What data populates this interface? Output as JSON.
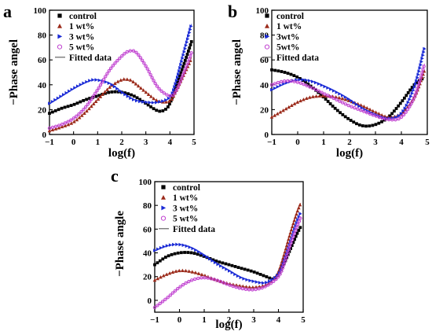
{
  "chart_data": [
    {
      "panel": "a",
      "type": "scatter",
      "xlabel": "log(f)",
      "ylabel": "−Phase angel",
      "xlim": [
        -1,
        5
      ],
      "ylim": [
        0,
        100
      ],
      "xticks": [
        -1,
        0,
        1,
        2,
        3,
        4,
        5
      ],
      "yticks": [
        0,
        20,
        40,
        60,
        80,
        100
      ],
      "legend_position": "top-left",
      "series": [
        {
          "name": "control",
          "marker": "square",
          "color": "#000000",
          "x": [
            -1,
            -0.5,
            0,
            0.5,
            1,
            1.5,
            2,
            2.5,
            3,
            3.5,
            3.8,
            4,
            4.25,
            4.5,
            4.75,
            4.9
          ],
          "y": [
            17,
            21,
            24,
            28,
            31,
            34,
            34,
            31,
            25,
            19,
            20,
            25,
            38,
            52,
            66,
            75
          ]
        },
        {
          "name": "1 wt%",
          "marker": "triangle-up",
          "color": "#9b2a1a",
          "x": [
            -1,
            -0.5,
            0,
            0.5,
            1,
            1.5,
            2,
            2.3,
            2.5,
            3,
            3.5,
            4,
            4.25,
            4.5,
            4.75,
            4.9
          ],
          "y": [
            3,
            6,
            10,
            18,
            28,
            38,
            44,
            44,
            42,
            34,
            27,
            27,
            35,
            45,
            55,
            62
          ]
        },
        {
          "name": "3 wt%",
          "marker": "triangle-right",
          "color": "#1a2ad6",
          "x": [
            -1,
            -0.5,
            0,
            0.5,
            0.9,
            1.5,
            2,
            2.5,
            3,
            3.5,
            4,
            4.25,
            4.5,
            4.75,
            4.9
          ],
          "y": [
            25,
            31,
            37,
            42,
            44,
            41,
            34,
            28,
            26,
            26,
            30,
            42,
            60,
            78,
            89
          ]
        },
        {
          "name": "5 wt%",
          "marker": "circle",
          "color": "#c040d0",
          "x": [
            -1,
            -0.5,
            0,
            0.5,
            1,
            1.5,
            2,
            2.3,
            2.6,
            3,
            3.5,
            4,
            4.25,
            4.5,
            4.75,
            4.9
          ],
          "y": [
            5,
            8,
            13,
            22,
            36,
            52,
            63,
            67,
            66,
            55,
            38,
            31,
            35,
            46,
            58,
            66
          ]
        }
      ],
      "fitted_label": "Fitted data"
    },
    {
      "panel": "b",
      "type": "scatter",
      "xlabel": "log(f)",
      "ylabel": "−Phase angel",
      "xlim": [
        -1,
        5
      ],
      "ylim": [
        0,
        100
      ],
      "xticks": [
        -1,
        0,
        1,
        2,
        3,
        4,
        5
      ],
      "yticks": [
        0,
        20,
        40,
        60,
        80,
        100
      ],
      "legend_position": "top-right",
      "series": [
        {
          "name": "control",
          "marker": "square",
          "color": "#000000",
          "x": [
            -1,
            -0.5,
            0,
            0.5,
            1,
            1.5,
            2,
            2.5,
            3,
            3.5,
            4,
            4.5,
            4.9
          ],
          "y": [
            52,
            50,
            46,
            39,
            30,
            20,
            12,
            7,
            8,
            14,
            26,
            40,
            46
          ]
        },
        {
          "name": "1 wt%",
          "marker": "triangle-up",
          "color": "#9b2a1a",
          "x": [
            -1,
            -0.5,
            0,
            0.5,
            1,
            1.5,
            2,
            2.5,
            3,
            3.5,
            4,
            4.5,
            4.9
          ],
          "y": [
            14,
            20,
            26,
            30,
            31,
            30,
            27,
            23,
            18,
            14,
            17,
            30,
            52
          ]
        },
        {
          "name": "3wt%",
          "marker": "triangle-right",
          "color": "#1a2ad6",
          "x": [
            -1,
            -0.5,
            0,
            0.5,
            1,
            1.5,
            2,
            2.5,
            3,
            3.5,
            4,
            4.5,
            4.9
          ],
          "y": [
            36,
            41,
            44,
            43,
            39,
            34,
            28,
            21,
            16,
            13,
            17,
            38,
            70
          ]
        },
        {
          "name": "5wt%",
          "marker": "circle",
          "color": "#c040d0",
          "x": [
            -1,
            -0.5,
            0,
            0.5,
            1,
            1.5,
            2,
            2.5,
            3,
            3.5,
            4,
            4.5,
            4.9
          ],
          "y": [
            40,
            43,
            42,
            38,
            33,
            28,
            23,
            19,
            15,
            12,
            14,
            30,
            57
          ]
        }
      ],
      "fitted_label": "Fitted data"
    },
    {
      "panel": "c",
      "type": "scatter",
      "xlabel": "log(f)",
      "ylabel": "−Phase angle",
      "xlim": [
        -1,
        5
      ],
      "ylim": [
        -10,
        100
      ],
      "xticks": [
        -1,
        0,
        1,
        2,
        3,
        4,
        5
      ],
      "yticks": [
        0,
        20,
        40,
        60,
        80,
        100
      ],
      "legend_position": "top-left",
      "series": [
        {
          "name": "control",
          "marker": "square",
          "color": "#000000",
          "x": [
            -1,
            -0.5,
            0,
            0.5,
            1,
            1.5,
            2,
            2.5,
            3,
            3.5,
            3.8,
            4,
            4.25,
            4.5,
            4.75,
            4.9
          ],
          "y": [
            30,
            37,
            40,
            40,
            37,
            33,
            30,
            27,
            24,
            20,
            18,
            22,
            32,
            44,
            56,
            62
          ]
        },
        {
          "name": "1 wt%",
          "marker": "triangle-up",
          "color": "#9b2a1a",
          "x": [
            -1,
            -0.5,
            0,
            0.5,
            1,
            1.5,
            2,
            2.5,
            3,
            3.5,
            3.8,
            4,
            4.25,
            4.5,
            4.75,
            4.9
          ],
          "y": [
            17,
            22,
            25,
            24,
            21,
            17,
            14,
            12,
            11,
            13,
            18,
            24,
            40,
            58,
            74,
            82
          ]
        },
        {
          "name": "3 wt%",
          "marker": "triangle-right",
          "color": "#1a2ad6",
          "x": [
            -1,
            -0.5,
            0,
            0.5,
            1,
            1.5,
            2,
            2.5,
            3,
            3.5,
            4,
            4.25,
            4.5,
            4.75,
            4.9
          ],
          "y": [
            42,
            46,
            47,
            44,
            38,
            31,
            25,
            19,
            16,
            15,
            22,
            34,
            50,
            66,
            74
          ]
        },
        {
          "name": "5 wt%",
          "marker": "circle",
          "color": "#c040d0",
          "x": [
            -1,
            -0.5,
            0,
            0.5,
            1,
            1.5,
            2,
            2.5,
            3,
            3.5,
            4,
            4.25,
            4.5,
            4.75,
            4.9
          ],
          "y": [
            -6,
            2,
            11,
            17,
            19,
            17,
            13,
            10,
            9,
            12,
            20,
            32,
            48,
            62,
            70
          ]
        }
      ],
      "fitted_label": "Fitted data"
    }
  ]
}
